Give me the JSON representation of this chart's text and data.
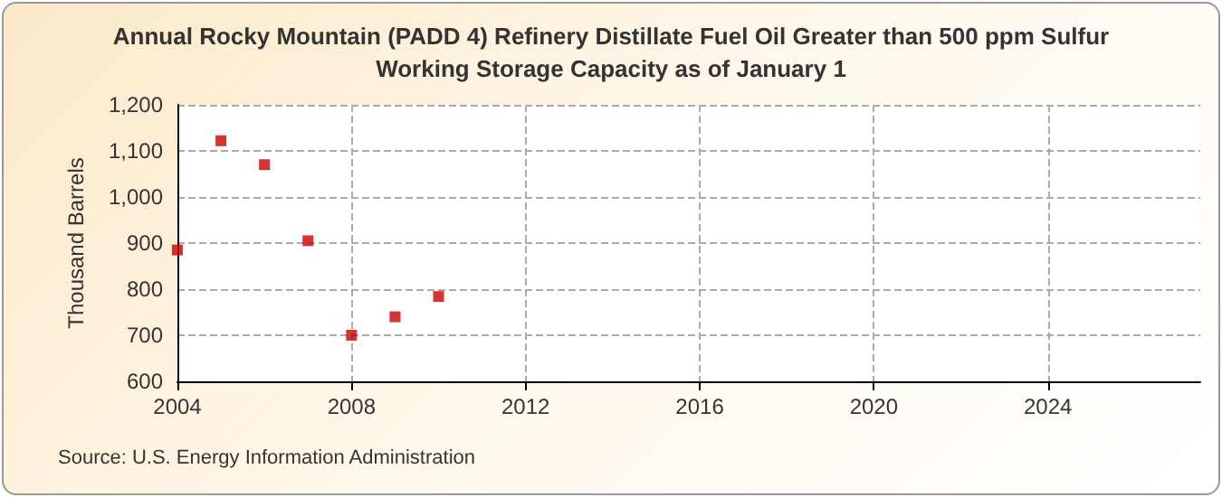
{
  "chart_data": {
    "type": "scatter",
    "title": "Annual Rocky Mountain (PADD 4) Refinery Distillate Fuel Oil Greater than 500 ppm Sulfur\nWorking Storage Capacity as of January 1",
    "ylabel": "Thousand Barrels",
    "annotations": [
      "Source: U.S. Energy Information Administration"
    ],
    "x": [
      2004,
      2005,
      2006,
      2007,
      2008,
      2009,
      2010
    ],
    "series": [
      {
        "color": "#cc0000",
        "values": [
          885,
          1122,
          1070,
          905,
          700,
          740,
          784
        ]
      }
    ],
    "xlim": [
      2004,
      2027.5
    ],
    "xticks": [
      2004,
      2008,
      2012,
      2016,
      2020,
      2024
    ],
    "ylim": [
      600,
      1200
    ],
    "yticks": [
      {
        "value": 600,
        "label": "600"
      },
      {
        "value": 700,
        "label": "700"
      },
      {
        "value": 800,
        "label": "800"
      },
      {
        "value": 900,
        "label": "900"
      },
      {
        "value": 1000,
        "label": "1,000"
      },
      {
        "value": 1100,
        "label": "1,100"
      },
      {
        "value": 1200,
        "label": "1,200"
      }
    ],
    "grid": true,
    "marker": "square"
  }
}
